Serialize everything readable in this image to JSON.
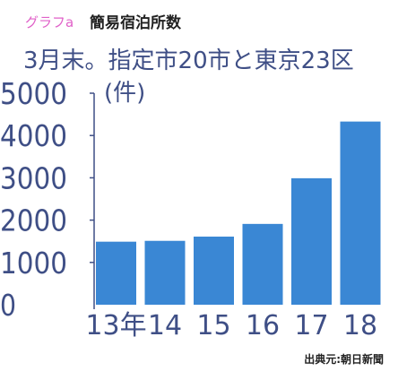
{
  "chart_data": {
    "type": "bar",
    "graph_label": "グラフa",
    "title": "簡易宿泊所数",
    "subtitle": "3月末。指定市20市と東京23区",
    "unit": "(件)",
    "categories": [
      "13年",
      "14",
      "15",
      "16",
      "17",
      "18"
    ],
    "values": [
      1490,
      1510,
      1610,
      1910,
      2990,
      4330
    ],
    "ylim": [
      0,
      5000
    ],
    "yticks": [
      0,
      1000,
      2000,
      3000,
      4000,
      5000
    ],
    "source": "出典元:朝日新聞",
    "grid": false,
    "colors": {
      "bar": "#3a87d4",
      "text": "#3f4f86",
      "graph_label": "#e060c8",
      "title": "#222222"
    }
  }
}
